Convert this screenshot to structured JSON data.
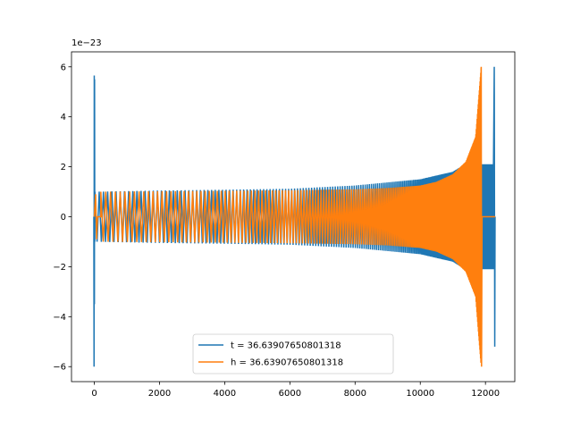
{
  "chart_data": {
    "type": "line",
    "title": "",
    "xlabel": "",
    "ylabel": "",
    "y_offset_label": "1e−23",
    "xlim": [
      -700,
      12900
    ],
    "ylim": [
      -6.6,
      6.6
    ],
    "x_ticks": [
      0,
      2000,
      4000,
      6000,
      8000,
      10000,
      12000
    ],
    "x_tick_labels": [
      "0",
      "2000",
      "4000",
      "6000",
      "8000",
      "10000",
      "12000"
    ],
    "y_ticks": [
      -6,
      -4,
      -2,
      0,
      2,
      4,
      6
    ],
    "y_tick_labels": [
      "−6",
      "−4",
      "−2",
      "0",
      "2",
      "4",
      "6"
    ],
    "grid": false,
    "legend_position": "lower center",
    "series": [
      {
        "name": "t = 36.63907650801318",
        "color": "#1f77b4",
        "description": "chirp waveform: spike near x=0 to about ±6, oscillation amplitude ~1 growing to ~2.3 near x≈11900, then dense ±2 band ending with spike to +6 and -5.2 near x≈12280",
        "x_range": [
          -20,
          12300
        ],
        "peak_values": {
          "start_max": 5.65,
          "start_min": -6.0,
          "end_max": 6.0,
          "end_min": -5.2
        },
        "envelope": {
          "x": [
            0,
            2000,
            4000,
            6000,
            8000,
            10000,
            11000,
            11500,
            11850,
            12000,
            12250
          ],
          "amplitude": [
            1.0,
            1.05,
            1.08,
            1.12,
            1.25,
            1.5,
            1.8,
            2.2,
            2.35,
            2.1,
            2.0
          ]
        }
      },
      {
        "name": "h = 36.63907650801318",
        "color": "#ff7f0e",
        "description": "chirp waveform offset in time: oscillation amplitude ~1 from x≈100 growing to spike ±6 near x≈11870, then flat zero to x≈12300",
        "x_range": [
          0,
          12300
        ],
        "peak_values": {
          "end_max": 6.0,
          "end_min": -6.0
        },
        "envelope": {
          "x": [
            100,
            2000,
            4000,
            6000,
            8000,
            9000,
            10000,
            10500,
            11000,
            11400,
            11700,
            11870
          ],
          "amplitude": [
            1.0,
            1.02,
            1.04,
            1.06,
            1.1,
            1.15,
            1.25,
            1.4,
            1.7,
            2.2,
            3.2,
            6.0
          ]
        }
      }
    ]
  }
}
